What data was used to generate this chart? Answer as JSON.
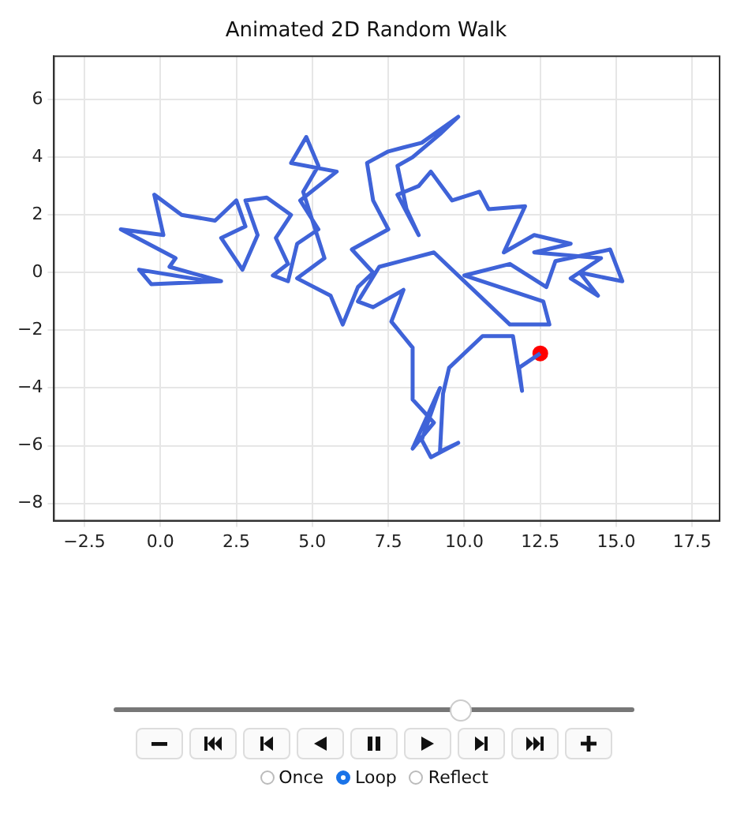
{
  "chart_data": {
    "type": "line",
    "title": "Animated 2D Random Walk",
    "grid": true,
    "legend": false,
    "xlim": [
      -3.5,
      18.4
    ],
    "xticks": [
      {
        "value": -2.5,
        "label": "−2.5"
      },
      {
        "value": 0,
        "label": "0.0"
      },
      {
        "value": 2.5,
        "label": "2.5"
      },
      {
        "value": 5,
        "label": "5.0"
      },
      {
        "value": 7.5,
        "label": "7.5"
      },
      {
        "value": 10,
        "label": "10.0"
      },
      {
        "value": 12.5,
        "label": "12.5"
      },
      {
        "value": 15,
        "label": "15.0"
      },
      {
        "value": 17.5,
        "label": "17.5"
      }
    ],
    "ylim": [
      -8.6,
      7.5
    ],
    "yticks": [
      {
        "value": -8,
        "label": "−8"
      },
      {
        "value": -6,
        "label": "−6"
      },
      {
        "value": -4,
        "label": "−4"
      },
      {
        "value": -2,
        "label": "−2"
      },
      0,
      2,
      4,
      6
    ],
    "series": [
      {
        "type": "line",
        "color": "#3f63d8",
        "line_style": "solid",
        "x": [
          1.6,
          -0.7,
          -0.3,
          2,
          0.3,
          0.5,
          -1.3,
          0.1,
          -0.2,
          0.7,
          1.8,
          2.5,
          2.8,
          2,
          2.7,
          3.2,
          2.8,
          3.5,
          4.3,
          3.8,
          4.2,
          3.7,
          4.2,
          4.5,
          5.2,
          4.6,
          5.8,
          4.3,
          4.8,
          5.2,
          4.7,
          5.4,
          4.5,
          5.6,
          6,
          6.5,
          7,
          6.3,
          7.5,
          7,
          6.8,
          7.5,
          8.6,
          9.8,
          9.2,
          8.3,
          7.8,
          8.1,
          8.5,
          7.8,
          8.5,
          8.9,
          9.6,
          10.5,
          10.8,
          12,
          11.3,
          12.3,
          13.5,
          12.3,
          14.5,
          13.5,
          14.4,
          13.8,
          15.2,
          14.8,
          13,
          12.7,
          11.5,
          10,
          12.6,
          12.8,
          11.5,
          9,
          7.2,
          6.5,
          7,
          8,
          7.6,
          8.3,
          8.3,
          9,
          8.3,
          9.2,
          8.6,
          8.9,
          9.8,
          9.2,
          9.3,
          9.5,
          10.6,
          11.6,
          11.9,
          11.8,
          12.5
        ],
        "values": [
          -0.3,
          0.1,
          -0.4,
          -0.3,
          0.2,
          0.5,
          1.5,
          1.3,
          2.7,
          2,
          1.8,
          2.5,
          1.6,
          1.2,
          0.1,
          1.3,
          2.5,
          2.6,
          2,
          1.2,
          0.3,
          -0.1,
          -0.3,
          1,
          1.5,
          2.5,
          3.5,
          3.8,
          4.7,
          3.7,
          2.8,
          0.5,
          -0.2,
          -0.8,
          -1.8,
          -0.5,
          0,
          0.8,
          1.5,
          2.5,
          3.8,
          4.2,
          4.5,
          5.4,
          4.8,
          4,
          3.7,
          2.2,
          1.3,
          2.7,
          3,
          3.5,
          2.5,
          2.8,
          2.2,
          2.3,
          0.7,
          1.3,
          1,
          0.7,
          0.5,
          -0.2,
          -0.8,
          0,
          -0.3,
          0.8,
          0.4,
          -0.5,
          0.3,
          -0.1,
          -1,
          -1.8,
          -1.8,
          0.7,
          0.2,
          -1,
          -1.2,
          -0.6,
          -1.7,
          -2.6,
          -4.4,
          -5.2,
          -6.1,
          -4,
          -5.8,
          -6.4,
          -5.9,
          -6.2,
          -4.2,
          -3.3,
          -2.2,
          -2.2,
          -4.1,
          -3.3,
          -2.8
        ]
      },
      {
        "type": "scatter",
        "color": "#ff0000",
        "marker": "circle",
        "x": [
          12.5
        ],
        "values": [
          -2.8
        ]
      }
    ],
    "annotations": [
      "Once",
      "Loop",
      "Reflect"
    ]
  }
}
